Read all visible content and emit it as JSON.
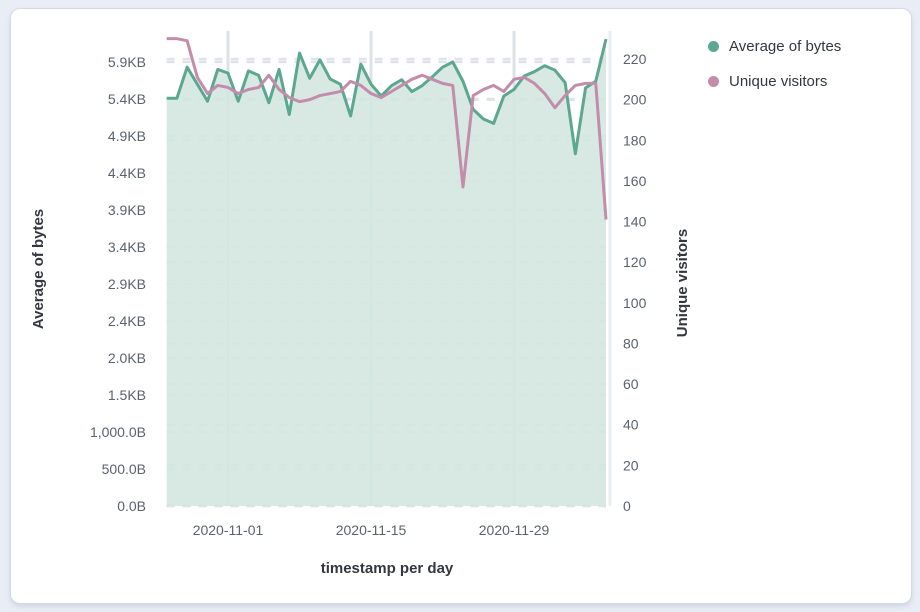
{
  "page": {
    "background": "#e9edf5",
    "card_background": "#ffffff",
    "card_border": "#d3dae6"
  },
  "chart_data": {
    "type": "area",
    "subtype": "dual-axis area + line, daily time series",
    "x_axis": {
      "title": "timestamp per day",
      "tick_dates": [
        "2020-11-01",
        "2020-11-15",
        "2020-11-29"
      ]
    },
    "left_axis": {
      "title": "Average of bytes",
      "tick_values": [
        0,
        500,
        1000,
        1500,
        2000,
        2500,
        3000,
        3500,
        4000,
        4500,
        5000,
        5500,
        6000
      ],
      "tick_labels": [
        "0.0B",
        "500.0B",
        "1,000.0B",
        "1.5KB",
        "2.0KB",
        "2.4KB",
        "2.9KB",
        "3.4KB",
        "3.9KB",
        "4.4KB",
        "4.9KB",
        "5.4KB",
        "5.9KB"
      ],
      "range": [
        0,
        6000
      ]
    },
    "right_axis": {
      "title": "Unique visitors",
      "tick_values": [
        0,
        20,
        40,
        60,
        80,
        100,
        120,
        140,
        160,
        180,
        200,
        220
      ],
      "tick_labels": [
        "0",
        "20",
        "40",
        "60",
        "80",
        "100",
        "120",
        "140",
        "160",
        "180",
        "200",
        "220"
      ],
      "range": [
        0,
        220
      ]
    },
    "dates": [
      "2020-10-26",
      "2020-10-27",
      "2020-10-28",
      "2020-10-29",
      "2020-10-30",
      "2020-10-31",
      "2020-11-01",
      "2020-11-02",
      "2020-11-03",
      "2020-11-04",
      "2020-11-05",
      "2020-11-06",
      "2020-11-07",
      "2020-11-08",
      "2020-11-09",
      "2020-11-10",
      "2020-11-11",
      "2020-11-12",
      "2020-11-13",
      "2020-11-14",
      "2020-11-15",
      "2020-11-16",
      "2020-11-17",
      "2020-11-18",
      "2020-11-19",
      "2020-11-20",
      "2020-11-21",
      "2020-11-22",
      "2020-11-23",
      "2020-11-24",
      "2020-11-25",
      "2020-11-26",
      "2020-11-27",
      "2020-11-28",
      "2020-11-29",
      "2020-11-30",
      "2020-12-01",
      "2020-12-02",
      "2020-12-03",
      "2020-12-04",
      "2020-12-05",
      "2020-12-06",
      "2020-12-07",
      "2020-12-08"
    ],
    "series": [
      {
        "name": "Average of bytes",
        "axis": "left",
        "type": "area",
        "color": "#5ca78f",
        "fill": "rgba(210,230,223,0.87)",
        "values": [
          5510,
          5510,
          5930,
          5700,
          5470,
          5900,
          5850,
          5470,
          5880,
          5820,
          5450,
          5900,
          5290,
          6120,
          5780,
          6030,
          5770,
          5700,
          5270,
          5970,
          5700,
          5540,
          5680,
          5760,
          5600,
          5680,
          5800,
          5930,
          6000,
          5740,
          5360,
          5230,
          5170,
          5540,
          5630,
          5810,
          5870,
          5950,
          5890,
          5720,
          4760,
          5650,
          5740,
          6310
        ]
      },
      {
        "name": "Unique visitors",
        "axis": "right",
        "type": "line",
        "color": "#c48cab",
        "values": [
          230,
          230,
          229,
          211,
          203,
          207,
          206,
          203,
          205,
          206,
          212,
          205,
          201,
          199,
          200,
          202,
          203,
          204,
          209,
          207,
          203,
          201,
          204,
          207,
          210,
          212,
          210,
          208,
          207,
          157,
          202,
          205,
          207,
          204,
          210,
          211,
          208,
          203,
          196,
          202,
          207,
          208,
          208,
          141
        ]
      }
    ],
    "grid": {
      "h_dash_color": "#dde3e8",
      "v_line_color": "#dbe2e8",
      "axis_edge_color": "#ebeef1"
    },
    "tick_label_color": "#5a626e",
    "legend_position": "top-right"
  }
}
